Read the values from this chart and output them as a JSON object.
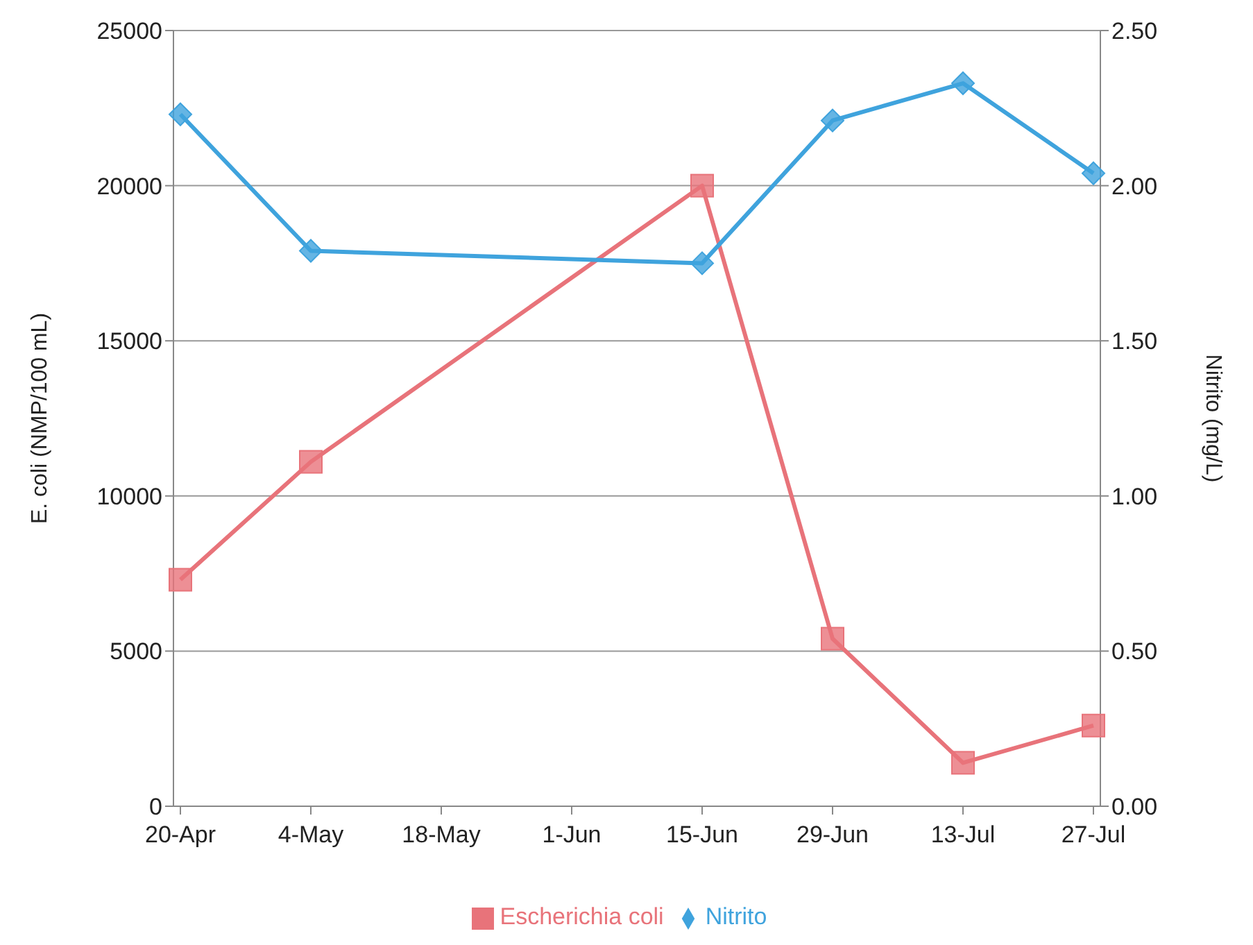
{
  "chart_data": {
    "type": "line",
    "categories": [
      "20-Apr",
      "4-May",
      "18-May",
      "1-Jun",
      "15-Jun",
      "29-Jun",
      "13-Jul",
      "27-Jul"
    ],
    "ylabel": "E. coli (NMP/100 mL)",
    "y2label": "Nitrito (mg/L)",
    "ylim": [
      0,
      25000
    ],
    "yticks": [
      0,
      5000,
      10000,
      15000,
      20000,
      25000
    ],
    "y2lim": [
      0,
      2.5
    ],
    "y2ticks": [
      {
        "value": 0,
        "label": "0.00"
      },
      {
        "value": 0.5,
        "label": "0.50"
      },
      {
        "value": 1,
        "label": "1.00"
      },
      {
        "value": 1.5,
        "label": "1.50"
      },
      {
        "value": 2,
        "label": "2.00"
      },
      {
        "value": 2.5,
        "label": "2.50"
      }
    ],
    "grid": "y",
    "legend": "bottom",
    "series": [
      {
        "name": "Escherichia coli",
        "color": "#e8737a",
        "marker": "square",
        "values": [
          7300,
          11100,
          null,
          null,
          20000,
          5400,
          1400,
          2600
        ]
      },
      {
        "name": "Nitrito",
        "color": "#3fa3dd",
        "marker": "diamond",
        "axis": "y2",
        "values": [
          2.23,
          1.79,
          null,
          null,
          1.75,
          2.21,
          2.33,
          2.04
        ]
      }
    ]
  }
}
